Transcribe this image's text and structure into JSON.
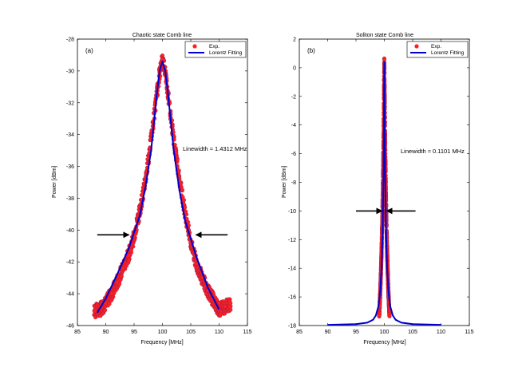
{
  "figure": {
    "background": "#ffffff",
    "exp_color": "#ff2020",
    "exp_edge": "#8a1d5a",
    "fit_color": "#0000cc"
  },
  "chart_data": [
    {
      "type": "scatter",
      "panel_label": "(a)",
      "title": "Chaotic state Comb line",
      "xlabel": "Frequency [MHz]",
      "ylabel": "Power [dBm]",
      "xlim": [
        85,
        115
      ],
      "ylim": [
        -46,
        -28
      ],
      "xticks": [
        85,
        90,
        95,
        100,
        105,
        110,
        115
      ],
      "yticks": [
        -46,
        -44,
        -42,
        -40,
        -38,
        -36,
        -34,
        -32,
        -30,
        -28
      ],
      "legend": {
        "placement": "top-right",
        "entries": [
          "Exp.",
          "Lorentz Fitting"
        ]
      },
      "annotation": {
        "text": "Linewidth ≈ 1.4312 MHz",
        "x": 106.5,
        "y": -35.5
      },
      "arrows": [
        {
          "from": [
            88.5,
            -40.3
          ],
          "to": [
            94.1,
            -40.3
          ]
        },
        {
          "from": [
            111.5,
            -40.3
          ],
          "to": [
            105.9,
            -40.3
          ]
        }
      ],
      "series": [
        {
          "name": "Exp.",
          "style": "markers",
          "color": "#ff2020",
          "x": [
            88,
            89,
            90,
            91,
            92,
            93,
            94,
            95,
            96,
            97,
            98,
            99,
            99.5,
            100,
            100.5,
            101,
            102,
            103,
            104,
            105,
            106,
            107,
            108,
            109,
            110,
            111,
            112
          ],
          "y": [
            -45.1,
            -45,
            -44.6,
            -44,
            -43.3,
            -42.4,
            -41.6,
            -40.4,
            -38.8,
            -36.9,
            -34.3,
            -31.5,
            -30.1,
            -29.3,
            -30,
            -31.5,
            -34.3,
            -36.8,
            -38.9,
            -40.8,
            -42.1,
            -43,
            -43.8,
            -44.4,
            -45,
            -44.8,
            -44.6
          ]
        },
        {
          "name": "Lorentz Fitting",
          "style": "line",
          "color": "#0000cc",
          "x": [
            88.5,
            90,
            92,
            94,
            96,
            97,
            98,
            99,
            99.5,
            100,
            100.5,
            101,
            102,
            103,
            104,
            106,
            108,
            110
          ],
          "y": [
            -45.2,
            -44.3,
            -42.8,
            -41.2,
            -39.1,
            -37.3,
            -35,
            -31.5,
            -30,
            -29.4,
            -30,
            -31.5,
            -35,
            -37.5,
            -39.4,
            -41.7,
            -43.6,
            -45
          ]
        }
      ]
    },
    {
      "type": "scatter",
      "panel_label": "(b)",
      "title": "Soliton state Comb line",
      "xlabel": "Frequency [MHz]",
      "ylabel": "Power [dBm]",
      "xlim": [
        85,
        115
      ],
      "ylim": [
        -18,
        2
      ],
      "xticks": [
        85,
        90,
        95,
        100,
        105,
        110,
        115
      ],
      "yticks": [
        -18,
        -16,
        -14,
        -12,
        -10,
        -8,
        -6,
        -4,
        -2,
        0,
        2
      ],
      "legend": {
        "placement": "top-right",
        "entries": [
          "Exp.",
          "Lorentz Fitting"
        ]
      },
      "annotation": {
        "text": "Linewidth ≈ 0.1101 MHz",
        "x": 105.3,
        "y": -5.7
      },
      "arrows": [
        {
          "from": [
            95,
            -10
          ],
          "to": [
            99.6,
            -10
          ]
        },
        {
          "from": [
            105.5,
            -10
          ],
          "to": [
            100.4,
            -10
          ]
        }
      ],
      "series": [
        {
          "name": "Exp.",
          "style": "markers",
          "color": "#ff2020",
          "x": [
            99.1,
            99.3,
            99.5,
            99.65,
            99.75,
            99.85,
            99.92,
            100,
            100.08,
            100.15,
            100.25,
            100.35,
            100.5,
            100.7,
            100.9
          ],
          "y": [
            -17.3,
            -15.5,
            -13,
            -10.5,
            -8,
            -5.2,
            -2.5,
            0.6,
            -2.5,
            -5.2,
            -8,
            -10.5,
            -13,
            -15.5,
            -17.3
          ]
        },
        {
          "name": "Lorentz Fitting",
          "style": "line",
          "color": "#0000cc",
          "x": [
            90,
            95,
            97,
            98,
            98.5,
            99,
            99.3,
            99.5,
            99.7,
            99.85,
            99.95,
            100,
            100.05,
            100.15,
            100.3,
            100.5,
            100.7,
            101,
            101.5,
            102,
            103,
            105,
            110
          ],
          "y": [
            -17.95,
            -17.9,
            -17.8,
            -17.6,
            -17.3,
            -16.6,
            -15.5,
            -14,
            -11.5,
            -7.5,
            -2,
            0.4,
            -2,
            -7.5,
            -11.5,
            -14,
            -15.5,
            -16.6,
            -17.3,
            -17.6,
            -17.8,
            -17.9,
            -17.95
          ]
        }
      ]
    }
  ]
}
